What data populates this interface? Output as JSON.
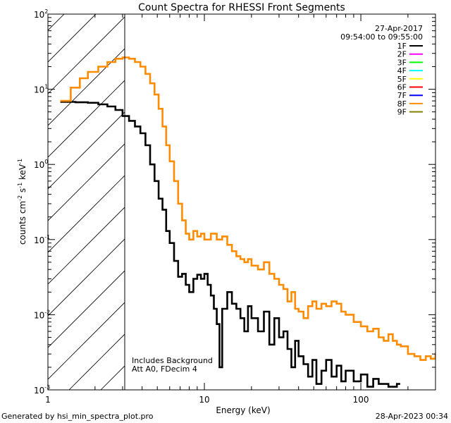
{
  "chart_data": {
    "type": "line",
    "title": "Count Spectra for RHESSI Front Segments",
    "xlabel": "Energy (keV)",
    "ylabel_parts": [
      "counts cm",
      "-2",
      " s",
      "-1",
      " keV",
      "-1"
    ],
    "x_scale": "log",
    "y_scale": "log",
    "xlim": [
      1,
      300
    ],
    "ylim": [
      0.001,
      100
    ],
    "x_ticks": [
      {
        "value": 1,
        "label": "1"
      },
      {
        "value": 10,
        "label": "10"
      },
      {
        "value": 100,
        "label": "100"
      }
    ],
    "y_ticks": [
      {
        "value": 0.001,
        "base": "10",
        "exp": "-3"
      },
      {
        "value": 0.01,
        "base": "10",
        "exp": "-2"
      },
      {
        "value": 0.1,
        "base": "10",
        "exp": "-1"
      },
      {
        "value": 1,
        "base": "10",
        "exp": "0"
      },
      {
        "value": 10,
        "base": "10",
        "exp": "1"
      },
      {
        "value": 100,
        "base": "10",
        "exp": "2"
      }
    ],
    "date": "27-Apr-2017",
    "time_range": "09:54:00 to 09:55:00",
    "hatched_region_below_keV": 3,
    "annotations": [
      "Includes Background",
      "Att A0, FDecim 4"
    ],
    "legend": [
      {
        "label": "1F",
        "color": "#000000"
      },
      {
        "label": "2F",
        "color": "#ff00ff"
      },
      {
        "label": "3F",
        "color": "#00ff00"
      },
      {
        "label": "4F",
        "color": "#00ffff"
      },
      {
        "label": "5F",
        "color": "#ffff00"
      },
      {
        "label": "6F",
        "color": "#ff0000"
      },
      {
        "label": "7F",
        "color": "#0000ff"
      },
      {
        "label": "8F",
        "color": "#ff8c00"
      },
      {
        "label": "9F",
        "color": "#808000"
      }
    ],
    "series": [
      {
        "name": "1F",
        "color": "#000000",
        "points": [
          [
            1.2,
            6.8
          ],
          [
            1.5,
            6.7
          ],
          [
            1.8,
            6.6
          ],
          [
            2.1,
            6.3
          ],
          [
            2.4,
            5.9
          ],
          [
            2.7,
            5.3
          ],
          [
            3.0,
            4.4
          ],
          [
            3.3,
            3.8
          ],
          [
            3.6,
            3.2
          ],
          [
            3.9,
            2.6
          ],
          [
            4.2,
            1.8
          ],
          [
            4.5,
            1.0
          ],
          [
            4.8,
            0.6
          ],
          [
            5.1,
            0.35
          ],
          [
            5.4,
            0.25
          ],
          [
            5.7,
            0.13
          ],
          [
            6.0,
            0.09
          ],
          [
            6.4,
            0.052
          ],
          [
            6.8,
            0.032
          ],
          [
            7.2,
            0.035
          ],
          [
            7.6,
            0.025
          ],
          [
            8.0,
            0.02
          ],
          [
            8.5,
            0.03
          ],
          [
            9.0,
            0.034
          ],
          [
            9.5,
            0.03
          ],
          [
            10.0,
            0.035
          ],
          [
            10.5,
            0.025
          ],
          [
            11.0,
            0.018
          ],
          [
            11.5,
            0.012
          ],
          [
            12.0,
            0.0075
          ],
          [
            12.5,
            0.002
          ],
          [
            13.0,
            0.012
          ],
          [
            14.0,
            0.02
          ],
          [
            15.0,
            0.014
          ],
          [
            16.0,
            0.012
          ],
          [
            17.0,
            0.009
          ],
          [
            18.0,
            0.006
          ],
          [
            19.0,
            0.013
          ],
          [
            20.0,
            0.009
          ],
          [
            22.0,
            0.006
          ],
          [
            24.0,
            0.011
          ],
          [
            26.0,
            0.004
          ],
          [
            28.0,
            0.009
          ],
          [
            30.0,
            0.005
          ],
          [
            32.0,
            0.006
          ],
          [
            34.0,
            0.0035
          ],
          [
            36.0,
            0.002
          ],
          [
            38.0,
            0.0045
          ],
          [
            40.0,
            0.0028
          ],
          [
            43.0,
            0.0022
          ],
          [
            46.0,
            0.0015
          ],
          [
            49.0,
            0.0025
          ],
          [
            52.0,
            0.0012
          ],
          [
            56.0,
            0.0018
          ],
          [
            60.0,
            0.0025
          ],
          [
            65.0,
            0.0015
          ],
          [
            70.0,
            0.0021
          ],
          [
            75.0,
            0.0013
          ],
          [
            80.0,
            0.0018
          ],
          [
            90.0,
            0.0013
          ],
          [
            100.0,
            0.0016
          ],
          [
            110.0,
            0.0011
          ],
          [
            120.0,
            0.0014
          ],
          [
            130.0,
            0.0012
          ],
          [
            150.0,
            0.0011
          ],
          [
            170.0,
            0.0012
          ]
        ]
      },
      {
        "name": "8F",
        "color": "#ff8c00",
        "points": [
          [
            1.2,
            7.0
          ],
          [
            1.4,
            10.5
          ],
          [
            1.6,
            14.0
          ],
          [
            1.8,
            17.0
          ],
          [
            2.1,
            20.0
          ],
          [
            2.4,
            23.0
          ],
          [
            2.7,
            25.5
          ],
          [
            3.0,
            26.5
          ],
          [
            3.3,
            25.5
          ],
          [
            3.6,
            23.0
          ],
          [
            3.9,
            20.0
          ],
          [
            4.2,
            16.0
          ],
          [
            4.5,
            12.0
          ],
          [
            4.8,
            8.5
          ],
          [
            5.1,
            5.5
          ],
          [
            5.4,
            3.2
          ],
          [
            5.7,
            1.8
          ],
          [
            6.0,
            1.1
          ],
          [
            6.4,
            0.6
          ],
          [
            6.8,
            0.3
          ],
          [
            7.2,
            0.18
          ],
          [
            7.6,
            0.12
          ],
          [
            8.0,
            0.1
          ],
          [
            8.5,
            0.13
          ],
          [
            9.0,
            0.11
          ],
          [
            9.5,
            0.12
          ],
          [
            10.0,
            0.1
          ],
          [
            11.0,
            0.12
          ],
          [
            12.0,
            0.1
          ],
          [
            13.0,
            0.11
          ],
          [
            14.0,
            0.085
          ],
          [
            15.0,
            0.07
          ],
          [
            16.0,
            0.06
          ],
          [
            17.0,
            0.055
          ],
          [
            18.0,
            0.05
          ],
          [
            19.0,
            0.055
          ],
          [
            20.0,
            0.045
          ],
          [
            22.0,
            0.04
          ],
          [
            24.0,
            0.05
          ],
          [
            26.0,
            0.035
          ],
          [
            28.0,
            0.03
          ],
          [
            30.0,
            0.025
          ],
          [
            32.0,
            0.022
          ],
          [
            34.0,
            0.015
          ],
          [
            36.0,
            0.02
          ],
          [
            38.0,
            0.012
          ],
          [
            40.0,
            0.011
          ],
          [
            43.0,
            0.009
          ],
          [
            46.0,
            0.013
          ],
          [
            49.0,
            0.015
          ],
          [
            52.0,
            0.012
          ],
          [
            56.0,
            0.014
          ],
          [
            60.0,
            0.013
          ],
          [
            65.0,
            0.015
          ],
          [
            70.0,
            0.014
          ],
          [
            75.0,
            0.011
          ],
          [
            80.0,
            0.01
          ],
          [
            90.0,
            0.008
          ],
          [
            100.0,
            0.007
          ],
          [
            110.0,
            0.006
          ],
          [
            120.0,
            0.0065
          ],
          [
            130.0,
            0.005
          ],
          [
            140.0,
            0.0045
          ],
          [
            150.0,
            0.0055
          ],
          [
            160.0,
            0.0045
          ],
          [
            170.0,
            0.004
          ],
          [
            180.0,
            0.0038
          ],
          [
            200.0,
            0.003
          ],
          [
            220.0,
            0.0028
          ],
          [
            240.0,
            0.0025
          ],
          [
            260.0,
            0.0028
          ],
          [
            280.0,
            0.0026
          ],
          [
            300.0,
            0.003
          ]
        ]
      }
    ]
  },
  "footer": {
    "generator": "Generated by hsi_min_spectra_plot.pro",
    "timestamp": "28-Apr-2023 00:34"
  }
}
